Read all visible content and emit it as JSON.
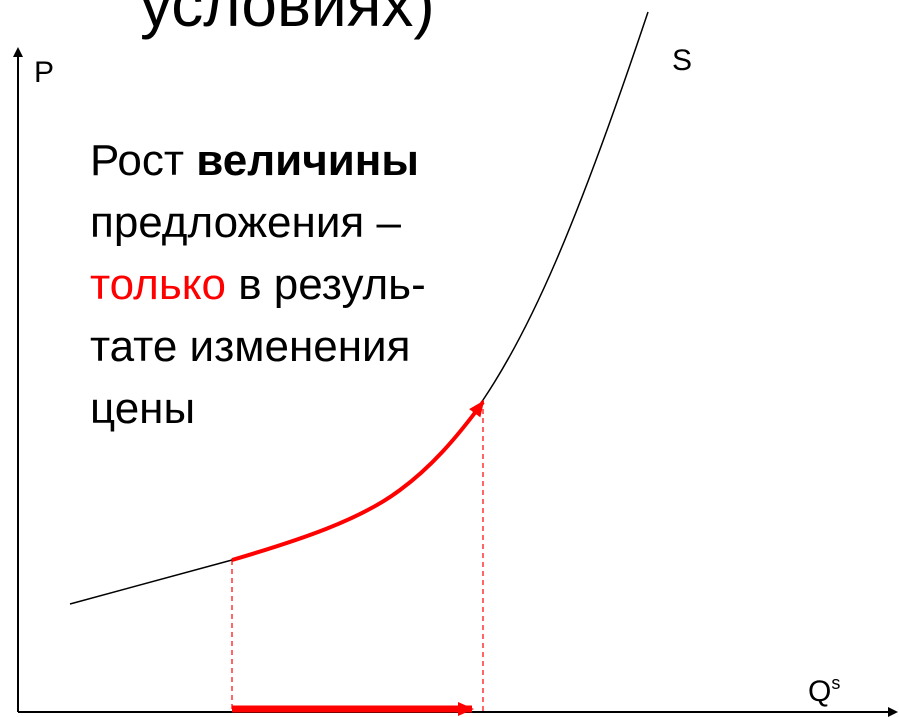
{
  "heading": "условиях)",
  "axes": {
    "y_label": "P",
    "x_label": "Q",
    "x_label_sup": "s"
  },
  "curve_label": "S",
  "caption": {
    "line1_plain": "Рост ",
    "line1_bold": "величины",
    "line2": "предложения –",
    "line3_red": "только",
    "line3_rest": " в резуль-",
    "line4": "тате изменения",
    "line5": "цены"
  },
  "colors": {
    "axis": "#000000",
    "curve": "#000000",
    "highlight": "#ff0000"
  }
}
